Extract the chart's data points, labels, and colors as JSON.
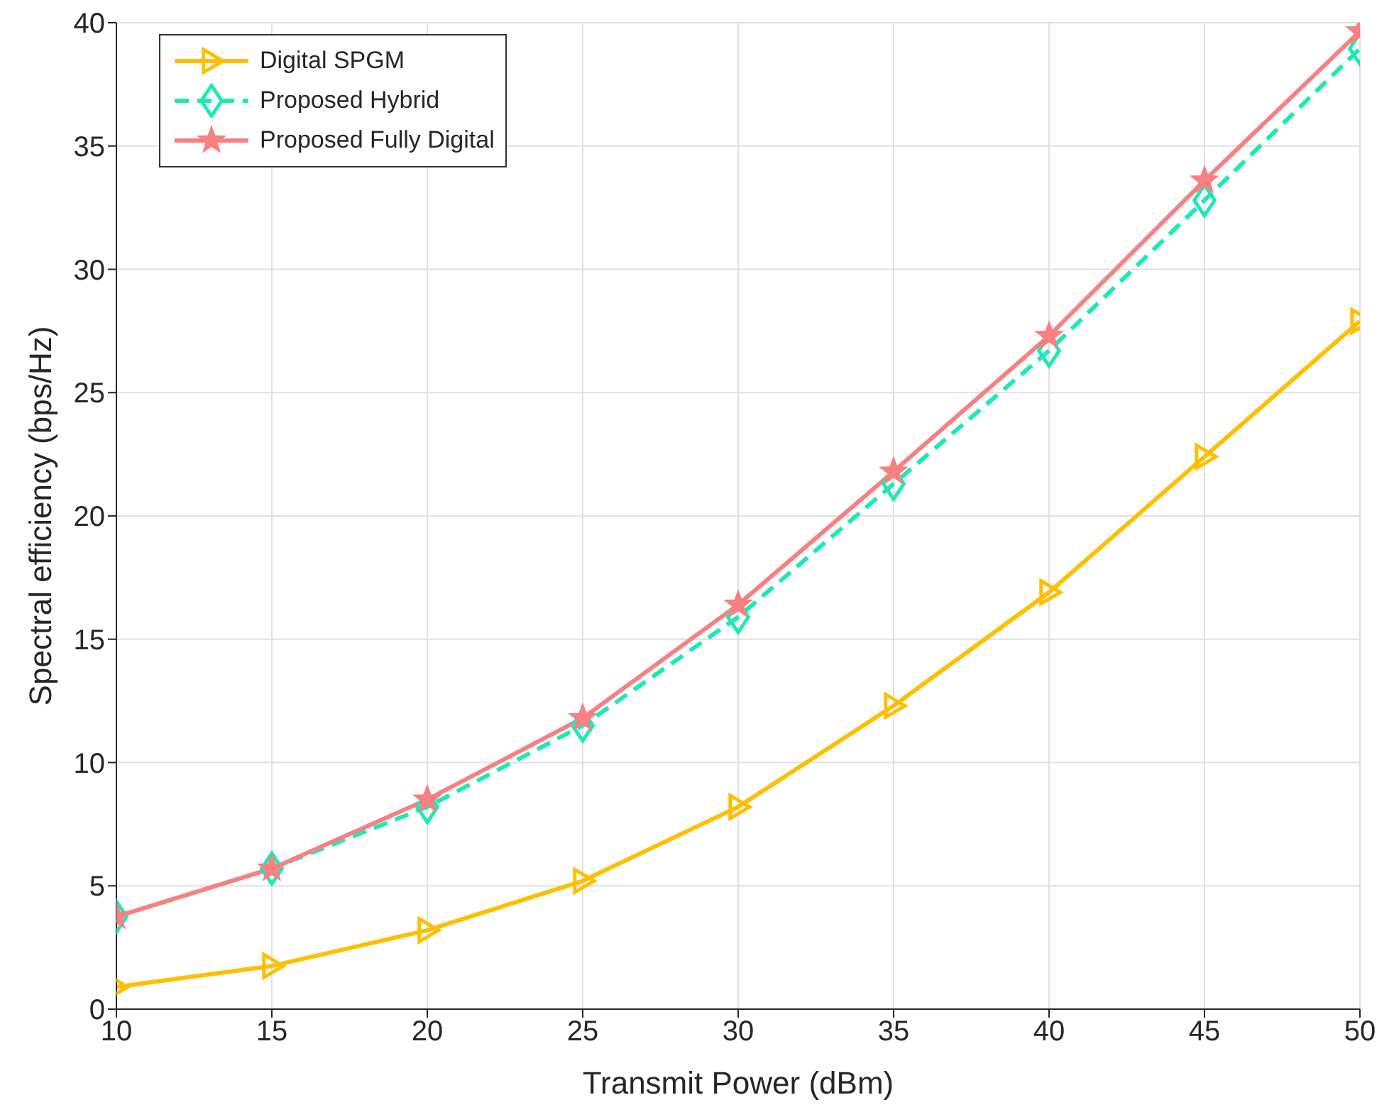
{
  "chart_data": {
    "type": "line",
    "xlabel": "Transmit Power (dBm)",
    "ylabel": "Spectral efficiency (bps/Hz)",
    "x": [
      10,
      15,
      20,
      25,
      30,
      35,
      40,
      45,
      50
    ],
    "series": [
      {
        "name": "Digital SPGM",
        "color": "#ffbf00",
        "marker": "triangle",
        "line_style": "solid",
        "values": [
          0.9,
          1.75,
          3.2,
          5.2,
          8.2,
          12.3,
          16.9,
          22.4,
          27.9
        ]
      },
      {
        "name": "Proposed Hybrid",
        "color": "#1de9b6",
        "marker": "diamond",
        "line_style": "dashed",
        "values": [
          3.75,
          5.7,
          8.2,
          11.5,
          15.9,
          21.3,
          26.7,
          32.8,
          38.95
        ]
      },
      {
        "name": "Proposed Fully Digital",
        "color": "#f88080",
        "marker": "star",
        "line_style": "solid",
        "values": [
          3.75,
          5.7,
          8.5,
          11.8,
          16.4,
          21.8,
          27.3,
          33.6,
          39.65
        ]
      }
    ],
    "xlim": [
      10,
      50
    ],
    "xticks": [
      10,
      15,
      20,
      25,
      30,
      35,
      40,
      45,
      50
    ],
    "ylim": [
      0,
      40
    ],
    "yticks": [
      0,
      5,
      10,
      15,
      20,
      25,
      30,
      35,
      40
    ],
    "grid": true,
    "legend": "top left"
  }
}
